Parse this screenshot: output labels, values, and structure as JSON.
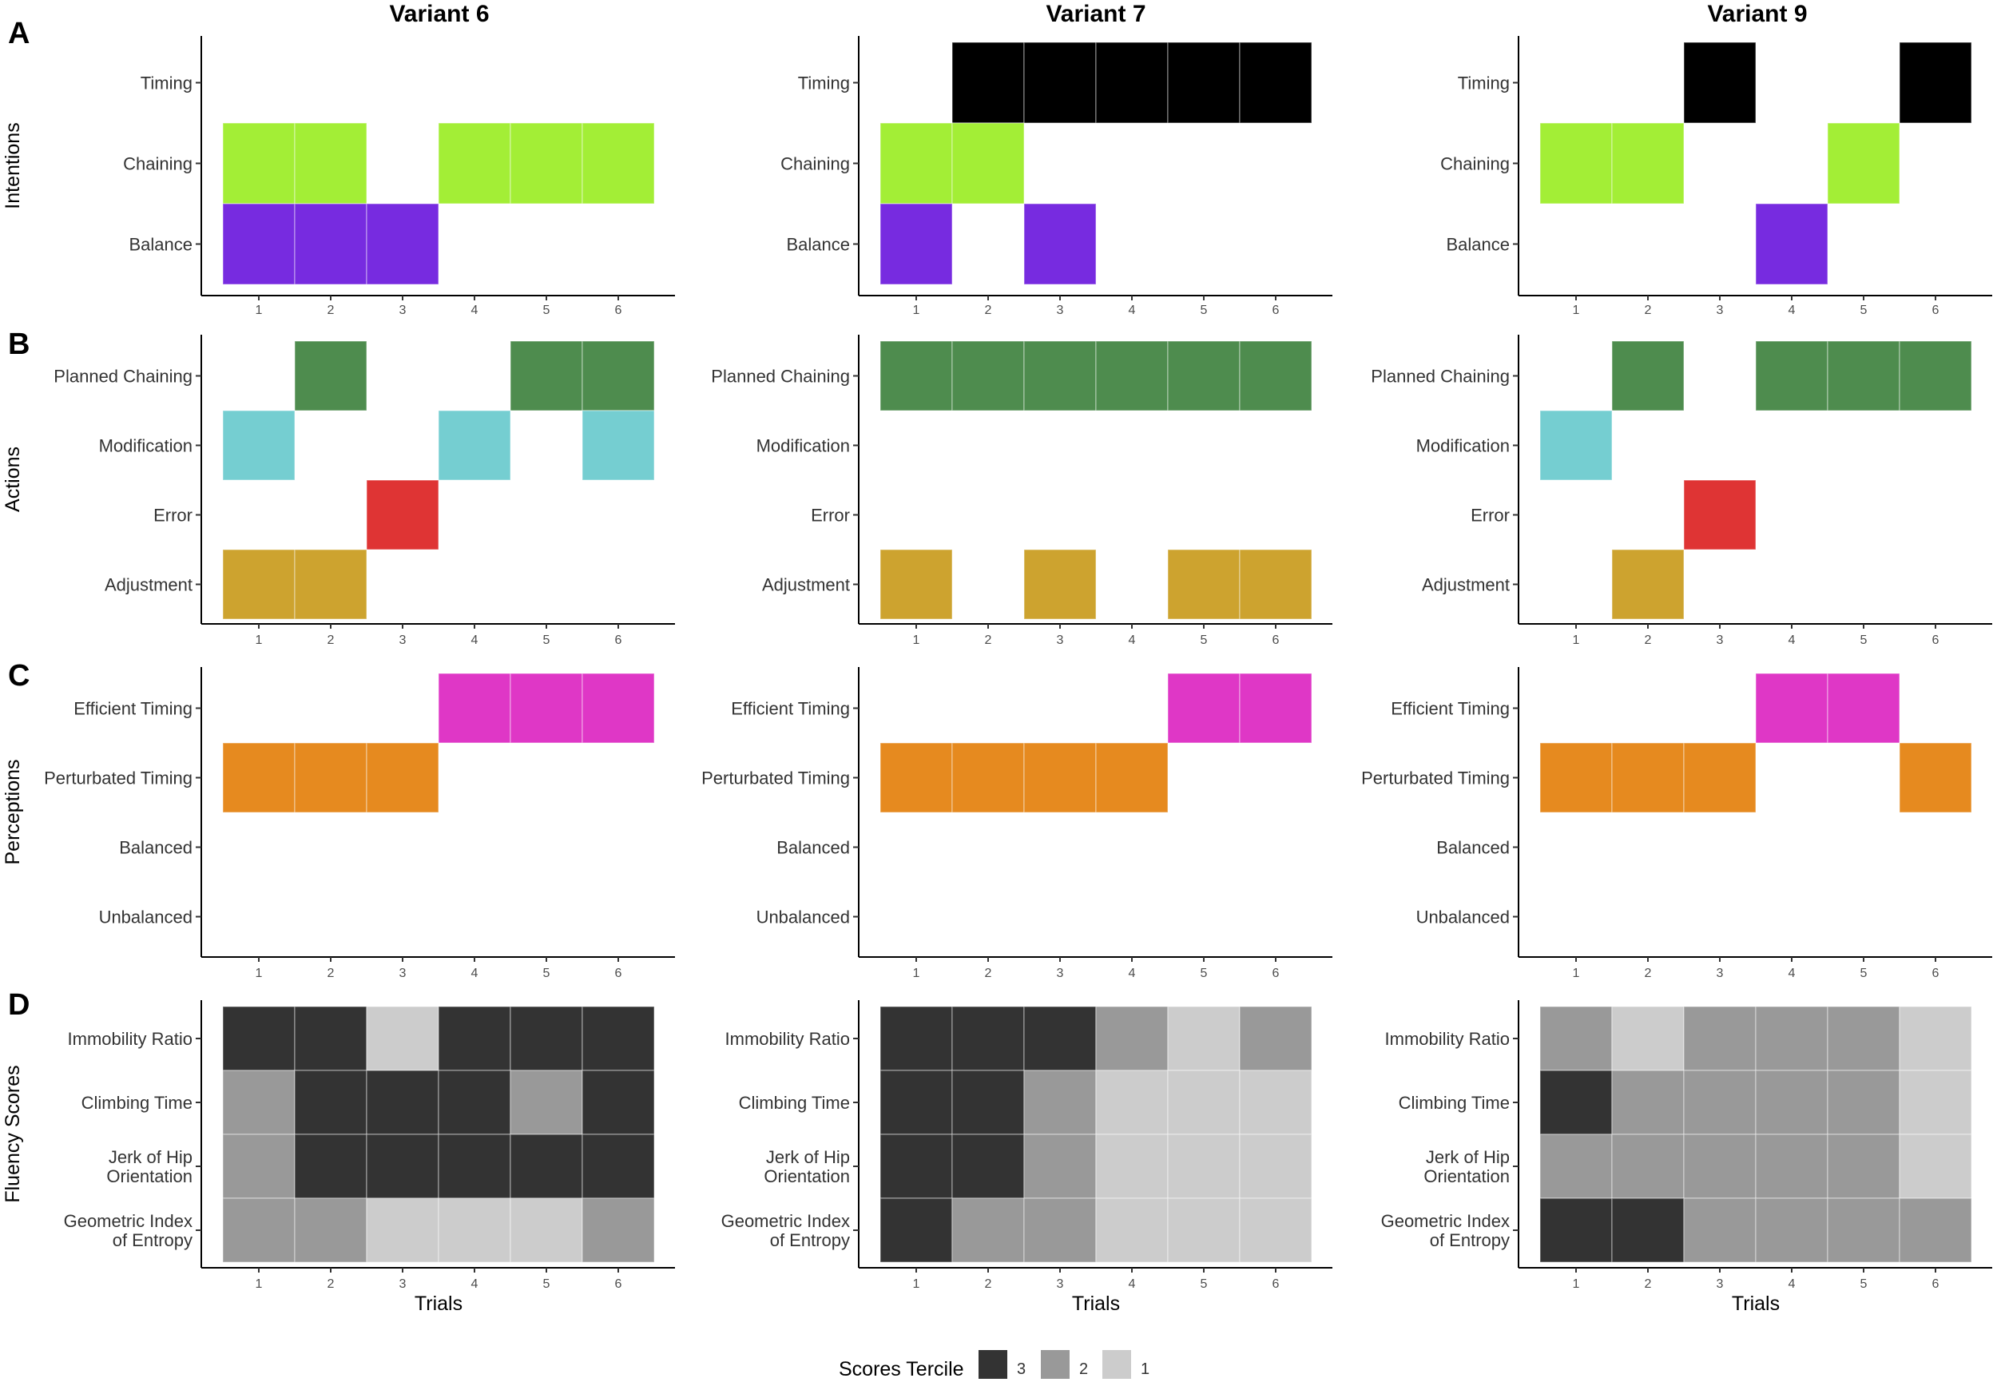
{
  "chart_data": {
    "type": "heatmap",
    "column_titles": [
      "Variant 6",
      "Variant 7",
      "Variant 9"
    ],
    "x_label": "Trials",
    "x_ticks": [
      "1",
      "2",
      "3",
      "4",
      "5",
      "6"
    ],
    "colors": {
      "Timing": "#000000",
      "Chaining": "#a3ee36",
      "Balance": "#772be0",
      "Planned Chaining": "#4e8c4e",
      "Modification": "#75ced1",
      "Error": "#df3434",
      "Adjustment": "#cda32f",
      "Efficient Timing": "#df37c6",
      "Perturbated Timing": "#e68a1f",
      "Balanced": "#888888",
      "Unbalanced": "#888888"
    },
    "panels": [
      {
        "letter": "A",
        "group": "Intentions",
        "kind": "category",
        "rows": [
          {
            "label": "Timing"
          },
          {
            "label": "Chaining"
          },
          {
            "label": "Balance"
          }
        ],
        "variants": [
          {
            "cells": [
              [
                0,
                0,
                0,
                0,
                0,
                0
              ],
              [
                1,
                1,
                0,
                1,
                1,
                1
              ],
              [
                1,
                1,
                1,
                0,
                0,
                0
              ]
            ]
          },
          {
            "cells": [
              [
                0,
                1,
                1,
                1,
                1,
                1
              ],
              [
                1,
                1,
                0,
                0,
                0,
                0
              ],
              [
                1,
                0,
                1,
                0,
                0,
                0
              ]
            ]
          },
          {
            "cells": [
              [
                0,
                0,
                1,
                0,
                0,
                1
              ],
              [
                1,
                1,
                0,
                0,
                1,
                0
              ],
              [
                0,
                0,
                0,
                1,
                0,
                0
              ]
            ]
          }
        ]
      },
      {
        "letter": "B",
        "group": "Actions",
        "kind": "category",
        "rows": [
          {
            "label": "Planned Chaining"
          },
          {
            "label": "Modification"
          },
          {
            "label": "Error"
          },
          {
            "label": "Adjustment"
          }
        ],
        "variants": [
          {
            "cells": [
              [
                0,
                1,
                0,
                0,
                1,
                1
              ],
              [
                1,
                0,
                0,
                1,
                0,
                1
              ],
              [
                0,
                0,
                1,
                0,
                0,
                0
              ],
              [
                1,
                1,
                0,
                0,
                0,
                0
              ]
            ]
          },
          {
            "cells": [
              [
                1,
                1,
                1,
                1,
                1,
                1
              ],
              [
                0,
                0,
                0,
                0,
                0,
                0
              ],
              [
                0,
                0,
                0,
                0,
                0,
                0
              ],
              [
                1,
                0,
                1,
                0,
                1,
                1
              ]
            ]
          },
          {
            "cells": [
              [
                0,
                1,
                0,
                1,
                1,
                1
              ],
              [
                1,
                0,
                0,
                0,
                0,
                0
              ],
              [
                0,
                0,
                1,
                0,
                0,
                0
              ],
              [
                0,
                1,
                0,
                0,
                0,
                0
              ]
            ]
          }
        ]
      },
      {
        "letter": "C",
        "group": "Perceptions",
        "kind": "category",
        "rows": [
          {
            "label": "Efficient Timing"
          },
          {
            "label": "Perturbated Timing"
          },
          {
            "label": "Balanced"
          },
          {
            "label": "Unbalanced"
          }
        ],
        "variants": [
          {
            "cells": [
              [
                0,
                0,
                0,
                1,
                1,
                1
              ],
              [
                1,
                1,
                1,
                0,
                0,
                0
              ],
              [
                0,
                0,
                0,
                0,
                0,
                0
              ],
              [
                0,
                0,
                0,
                0,
                0,
                0
              ]
            ]
          },
          {
            "cells": [
              [
                0,
                0,
                0,
                0,
                1,
                1
              ],
              [
                1,
                1,
                1,
                1,
                0,
                0
              ],
              [
                0,
                0,
                0,
                0,
                0,
                0
              ],
              [
                0,
                0,
                0,
                0,
                0,
                0
              ]
            ]
          },
          {
            "cells": [
              [
                0,
                0,
                0,
                1,
                1,
                0
              ],
              [
                1,
                1,
                1,
                0,
                0,
                1
              ],
              [
                0,
                0,
                0,
                0,
                0,
                0
              ],
              [
                0,
                0,
                0,
                0,
                0,
                0
              ]
            ]
          }
        ]
      },
      {
        "letter": "D",
        "group": "Fluency Scores",
        "kind": "tercile",
        "rows": [
          {
            "label": "Immobility Ratio",
            "lines": [
              "Immobility Ratio"
            ]
          },
          {
            "label": "Climbing Time",
            "lines": [
              "Climbing Time"
            ]
          },
          {
            "label": "Jerk of Hip Orientation",
            "lines": [
              "Jerk of Hip",
              "Orientation"
            ]
          },
          {
            "label": "Geometric Index of Entropy",
            "lines": [
              "Geometric Index",
              "of Entropy"
            ]
          }
        ],
        "variants": [
          {
            "cells": [
              [
                3,
                3,
                1,
                3,
                3,
                3
              ],
              [
                2,
                3,
                3,
                3,
                2,
                3
              ],
              [
                2,
                3,
                3,
                3,
                3,
                3
              ],
              [
                2,
                2,
                1,
                1,
                1,
                2
              ]
            ]
          },
          {
            "cells": [
              [
                3,
                3,
                3,
                2,
                1,
                2
              ],
              [
                3,
                3,
                2,
                1,
                1,
                1
              ],
              [
                3,
                3,
                2,
                1,
                1,
                1
              ],
              [
                3,
                2,
                2,
                1,
                1,
                1
              ]
            ]
          },
          {
            "cells": [
              [
                2,
                1,
                2,
                2,
                2,
                1
              ],
              [
                3,
                2,
                2,
                2,
                2,
                1
              ],
              [
                2,
                2,
                2,
                2,
                2,
                1
              ],
              [
                3,
                3,
                2,
                2,
                2,
                2
              ]
            ]
          }
        ]
      }
    ],
    "legend": {
      "title": "Scores Tercile",
      "items": [
        {
          "label": "3",
          "color": "#333333"
        },
        {
          "label": "2",
          "color": "#999999"
        },
        {
          "label": "1",
          "color": "#cccccc"
        }
      ]
    }
  }
}
